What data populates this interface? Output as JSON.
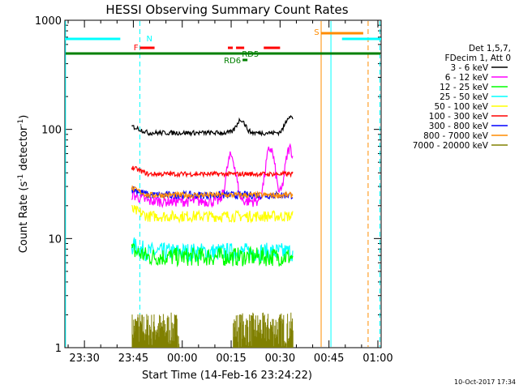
{
  "chart_data": {
    "type": "line",
    "title": "HESSI Observing Summary Count Rates",
    "xlabel": "Start Time (14-Feb-16 23:24:22)",
    "ylabel_main": "Count Rate (s",
    "ylabel_sup1": "-1",
    "ylabel_mid": " detector",
    "ylabel_sup2": "-1",
    "ylabel_end": ")",
    "y_scale": "log",
    "ylim": [
      1,
      1000
    ],
    "xlim_minutes_after_2330": [
      -6,
      91
    ],
    "x_ticks": [
      {
        "label": "23:30",
        "minute": 0
      },
      {
        "label": "23:45",
        "minute": 15
      },
      {
        "label": "00:00",
        "minute": 30
      },
      {
        "label": "00:15",
        "minute": 45
      },
      {
        "label": "00:30",
        "minute": 60
      },
      {
        "label": "00:45",
        "minute": 75
      },
      {
        "label": "01:00",
        "minute": 90
      }
    ],
    "y_ticks": [
      {
        "label": "1",
        "value": 1
      },
      {
        "label": "10",
        "value": 10
      },
      {
        "label": "100",
        "value": 100
      },
      {
        "label": "1000",
        "value": 1000
      }
    ],
    "legend_header": [
      "Det 1,5,7,",
      "FDecim 1, Att 0"
    ],
    "legend_position": "right outside",
    "series": [
      {
        "name": "3 - 6 keV",
        "color": "#000000",
        "base": 93,
        "noise": 0.05,
        "bumps": [
          [
            48,
            30
          ],
          [
            63,
            40
          ]
        ]
      },
      {
        "name": "6 - 12 keV",
        "color": "#ff00ff",
        "base": 22,
        "noise": 0.12,
        "bumps": [
          [
            45,
            35
          ],
          [
            57,
            45
          ],
          [
            63,
            45
          ]
        ]
      },
      {
        "name": "12 - 25 keV",
        "color": "#00ff00",
        "base": 6.8,
        "noise": 0.2,
        "bumps": []
      },
      {
        "name": "25 - 50 keV",
        "color": "#00ffff",
        "base": 7.5,
        "noise": 0.2,
        "bumps": []
      },
      {
        "name": "50 - 100 keV",
        "color": "#ffff00",
        "base": 16,
        "noise": 0.12,
        "bumps": []
      },
      {
        "name": "100 - 300 keV",
        "color": "#ff0000",
        "base": 39,
        "noise": 0.05,
        "bumps": []
      },
      {
        "name": "300 - 800 keV",
        "color": "#0000ff",
        "base": 25,
        "noise": 0.08,
        "bumps": []
      },
      {
        "name": "800 - 7000 keV",
        "color": "#ff8c00",
        "base": 25,
        "noise": 0.06,
        "bumps": []
      },
      {
        "name": "7000 - 20000 keV",
        "color": "#808000",
        "base": 1,
        "noise": 0,
        "bumps": []
      }
    ],
    "data_window_minutes": [
      14.5,
      64
    ],
    "flag_labels": {
      "N": "N",
      "F": "F",
      "S": "S",
      "RD5": "RD5",
      "RD6": "RD6"
    },
    "colors": {
      "saa_line": "#00ffff",
      "saa_dashed": "#00ffff",
      "night_line": "#ff8c00",
      "night_dashed": "#ff8c00",
      "attenuator_bar": "#008000",
      "flare_flag": "#ff0000"
    }
  },
  "footer": {
    "timestamp": "10-Oct-2017 17:34"
  }
}
